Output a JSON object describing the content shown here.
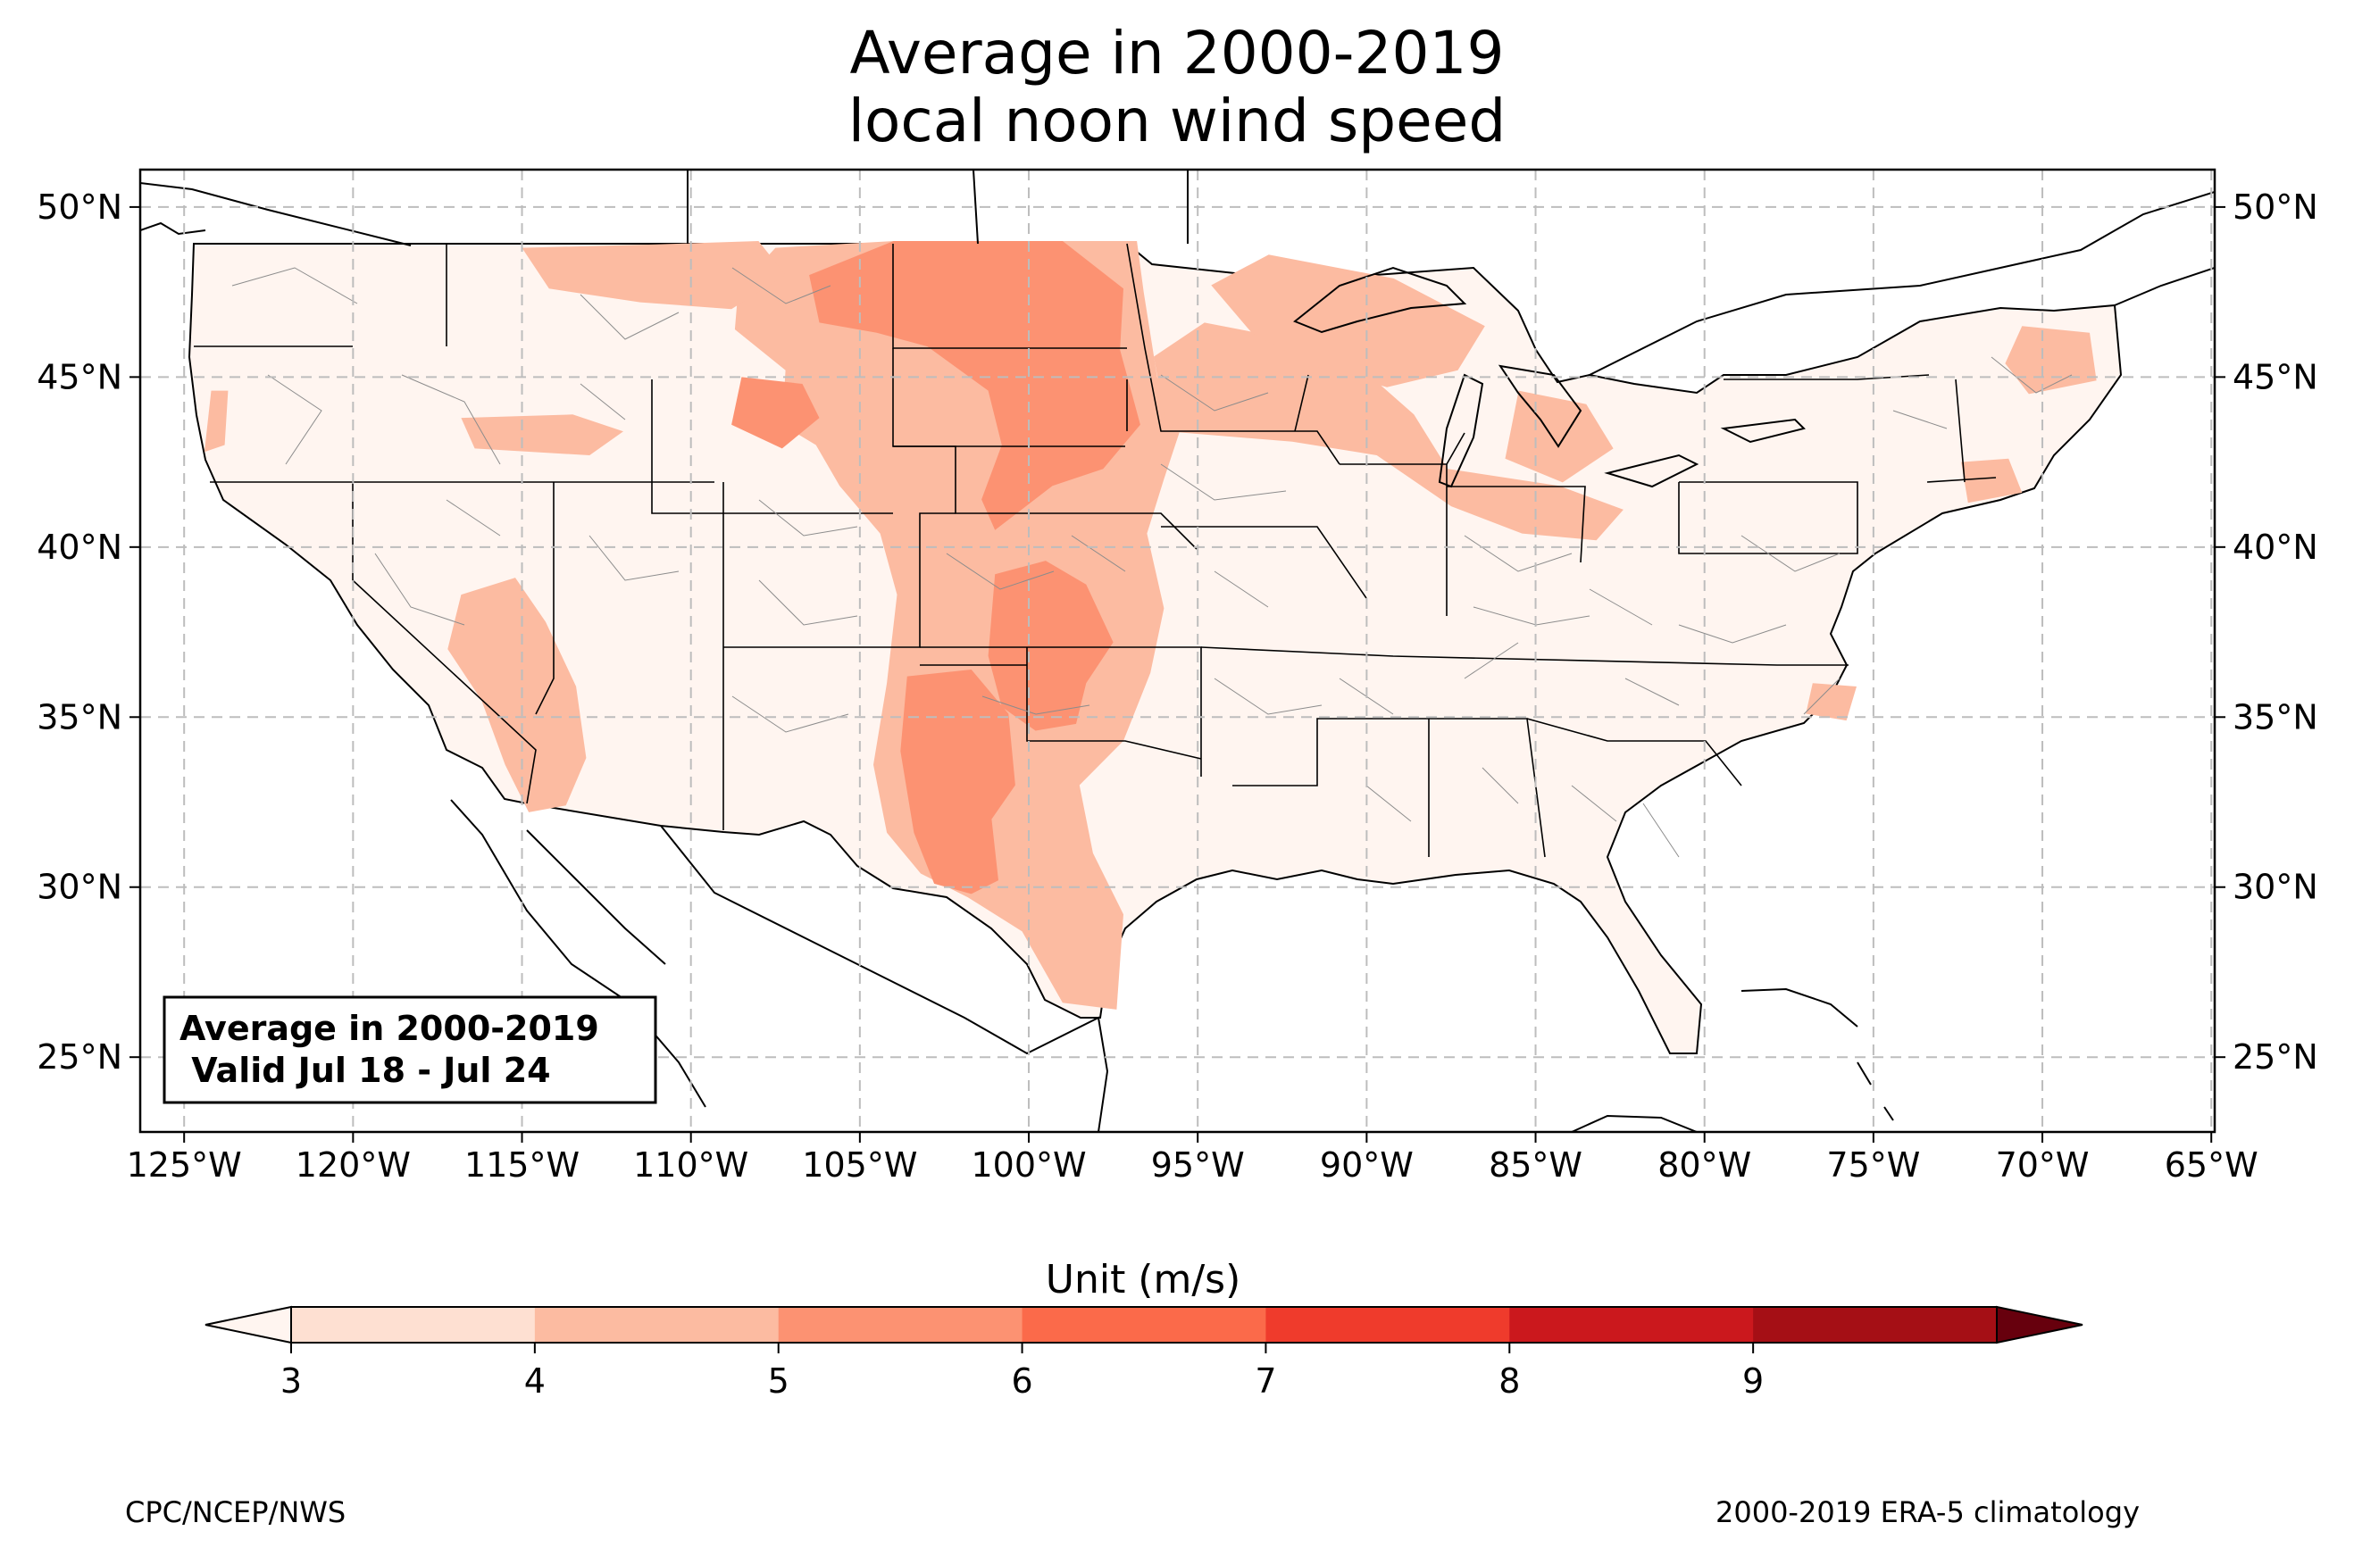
{
  "title_lines": [
    "Average in 2000-2019",
    "local noon wind speed"
  ],
  "info_box": {
    "line1": "Average in 2000-2019",
    "line2": " Valid Jul 18 - Jul 24"
  },
  "footer": {
    "left": "CPC/NCEP/NWS",
    "right": "2000-2019 ERA-5 climatology"
  },
  "colorbar": {
    "title": "Unit (m/s)",
    "ticks": [
      "3",
      "4",
      "5",
      "6",
      "7",
      "8",
      "9"
    ],
    "colors": [
      "#fee0d2",
      "#fcbba1",
      "#fc9272",
      "#fb6a4a",
      "#ef3b2c",
      "#cb181d",
      "#a50f15"
    ],
    "under_color": "#fff5f0",
    "over_color": "#67000d"
  },
  "chart_data": {
    "type": "heatmap",
    "projection": "plate-carree",
    "lon_range": [
      -126.3,
      -64.9
    ],
    "lat_range": [
      22.8,
      51.1
    ],
    "lon_ticks": [
      {
        "value": -125,
        "label": "125°W"
      },
      {
        "value": -120,
        "label": "120°W"
      },
      {
        "value": -115,
        "label": "115°W"
      },
      {
        "value": -110,
        "label": "110°W"
      },
      {
        "value": -105,
        "label": "105°W"
      },
      {
        "value": -100,
        "label": "100°W"
      },
      {
        "value": -95,
        "label": "95°W"
      },
      {
        "value": -90,
        "label": "90°W"
      },
      {
        "value": -85,
        "label": "85°W"
      },
      {
        "value": -80,
        "label": "80°W"
      },
      {
        "value": -75,
        "label": "75°W"
      },
      {
        "value": -70,
        "label": "70°W"
      },
      {
        "value": -65,
        "label": "65°W"
      }
    ],
    "lat_ticks": [
      {
        "value": 50,
        "label": "50°N"
      },
      {
        "value": 45,
        "label": "45°N"
      },
      {
        "value": 40,
        "label": "40°N"
      },
      {
        "value": 35,
        "label": "35°N"
      },
      {
        "value": 30,
        "label": "30°N"
      },
      {
        "value": 25,
        "label": "25°N"
      }
    ],
    "grid": true,
    "units": "m/s",
    "levels": [
      3,
      4,
      5,
      6,
      7,
      8,
      9
    ],
    "background_level": "3-4",
    "regions": [
      {
        "name": "northern-great-plains",
        "level": "5-6",
        "polygon": [
          [
            -106.5,
            48
          ],
          [
            -104,
            49
          ],
          [
            -99,
            49
          ],
          [
            -97.2,
            47.6
          ],
          [
            -97.3,
            45.8
          ],
          [
            -96.7,
            43.6
          ],
          [
            -97.8,
            42.3
          ],
          [
            -99.3,
            41.8
          ],
          [
            -101,
            40.5
          ],
          [
            -101.4,
            41.4
          ],
          [
            -100.8,
            43
          ],
          [
            -101.2,
            44.6
          ],
          [
            -103,
            45.9
          ],
          [
            -104.5,
            46.3
          ],
          [
            -106.2,
            46.6
          ]
        ]
      },
      {
        "name": "central-plains",
        "level": "5-6",
        "polygon": [
          [
            -101,
            39.2
          ],
          [
            -99.5,
            39.6
          ],
          [
            -98.3,
            38.9
          ],
          [
            -97.5,
            37.2
          ],
          [
            -98.3,
            36
          ],
          [
            -98.6,
            34.8
          ],
          [
            -99.8,
            34.6
          ],
          [
            -100.8,
            35.3
          ],
          [
            -101.2,
            36.8
          ]
        ]
      },
      {
        "name": "south-texas-plains",
        "level": "5-6",
        "polygon": [
          [
            -103.6,
            36.2
          ],
          [
            -101.7,
            36.4
          ],
          [
            -100.6,
            35.1
          ],
          [
            -100.4,
            33
          ],
          [
            -101.1,
            32
          ],
          [
            -100.9,
            30.2
          ],
          [
            -101.7,
            29.8
          ],
          [
            -102.8,
            30.1
          ],
          [
            -103.4,
            31.6
          ],
          [
            -103.8,
            34
          ]
        ]
      },
      {
        "name": "wyoming-basin",
        "level": "5-6",
        "polygon": [
          [
            -108.5,
            45
          ],
          [
            -106.7,
            44.8
          ],
          [
            -106.2,
            43.8
          ],
          [
            -107.3,
            42.9
          ],
          [
            -108.8,
            43.6
          ]
        ]
      },
      {
        "name": "high-plains-broad",
        "level": "4-5",
        "polygon": [
          [
            -107.5,
            48.8
          ],
          [
            -104,
            49
          ],
          [
            -96.8,
            49
          ],
          [
            -96.6,
            47.5
          ],
          [
            -96.2,
            45
          ],
          [
            -95.5,
            43.5
          ],
          [
            -96,
            42
          ],
          [
            -96.5,
            40.4
          ],
          [
            -96,
            38.2
          ],
          [
            -96.4,
            36.3
          ],
          [
            -97.2,
            34.3
          ],
          [
            -98.5,
            33
          ],
          [
            -98.1,
            31
          ],
          [
            -97.2,
            29.2
          ],
          [
            -97.4,
            26.4
          ],
          [
            -99,
            26.6
          ],
          [
            -100.2,
            28.7
          ],
          [
            -101.8,
            29.7
          ],
          [
            -103.2,
            30.4
          ],
          [
            -104.2,
            31.6
          ],
          [
            -104.6,
            33.6
          ],
          [
            -104.2,
            36
          ],
          [
            -103.9,
            38.6
          ],
          [
            -104.4,
            40.4
          ],
          [
            -105.6,
            41.8
          ],
          [
            -106.3,
            43
          ],
          [
            -107.3,
            43.6
          ],
          [
            -107.2,
            45.2
          ],
          [
            -108.7,
            46.4
          ],
          [
            -108.6,
            47.6
          ]
        ]
      },
      {
        "name": "montana-north",
        "level": "4-5",
        "polygon": [
          [
            -115,
            48.8
          ],
          [
            -111,
            48.9
          ],
          [
            -108,
            49
          ],
          [
            -107.2,
            48
          ],
          [
            -108.8,
            47
          ],
          [
            -111.5,
            47.2
          ],
          [
            -114.2,
            47.6
          ]
        ]
      },
      {
        "name": "southwest-desert",
        "level": "4-5",
        "polygon": [
          [
            -116.8,
            38.6
          ],
          [
            -115.2,
            39.1
          ],
          [
            -114.3,
            37.8
          ],
          [
            -113.4,
            35.9
          ],
          [
            -113.1,
            33.8
          ],
          [
            -113.7,
            32.4
          ],
          [
            -114.8,
            32.2
          ],
          [
            -115.5,
            33.6
          ],
          [
            -116.2,
            35.5
          ],
          [
            -117.2,
            37
          ]
        ]
      },
      {
        "name": "iowa-illinois-corridor",
        "level": "4-5",
        "polygon": [
          [
            -95.9,
            43.4
          ],
          [
            -92.2,
            43.1
          ],
          [
            -89.7,
            42.7
          ],
          [
            -87.5,
            41.2
          ],
          [
            -85.4,
            40.4
          ],
          [
            -83.2,
            40.2
          ],
          [
            -82.4,
            41.1
          ],
          [
            -84.3,
            41.8
          ],
          [
            -87.6,
            42.3
          ],
          [
            -88.6,
            43.9
          ],
          [
            -90.2,
            45.3
          ],
          [
            -92.7,
            46.2
          ],
          [
            -94.8,
            46.6
          ],
          [
            -96.3,
            45.6
          ]
        ]
      },
      {
        "name": "upper-midwest",
        "level": "4-5",
        "polygon": [
          [
            -92.9,
            48.6
          ],
          [
            -89.2,
            47.9
          ],
          [
            -86.5,
            46.5
          ],
          [
            -87.3,
            45.2
          ],
          [
            -89.4,
            44.7
          ],
          [
            -91.5,
            45.3
          ],
          [
            -93.4,
            46.3
          ],
          [
            -94.6,
            47.7
          ]
        ]
      },
      {
        "name": "southern-michigan",
        "level": "4-5",
        "polygon": [
          [
            -85.5,
            44.6
          ],
          [
            -83.5,
            44.2
          ],
          [
            -82.7,
            42.9
          ],
          [
            -84.2,
            41.9
          ],
          [
            -85.9,
            42.6
          ]
        ]
      },
      {
        "name": "northern-new-england",
        "level": "4-5",
        "polygon": [
          [
            -70.6,
            46.5
          ],
          [
            -68.6,
            46.3
          ],
          [
            -68.4,
            44.9
          ],
          [
            -70.4,
            44.5
          ],
          [
            -71.1,
            45.4
          ]
        ]
      },
      {
        "name": "new-england-coast",
        "level": "4-5",
        "polygon": [
          [
            -72.4,
            42.5
          ],
          [
            -71,
            42.6
          ],
          [
            -70.6,
            41.6
          ],
          [
            -72.2,
            41.3
          ]
        ]
      },
      {
        "name": "carolina-coast",
        "level": "4-5",
        "polygon": [
          [
            -76.8,
            36
          ],
          [
            -75.5,
            35.9
          ],
          [
            -75.8,
            34.9
          ],
          [
            -77,
            35.1
          ]
        ]
      },
      {
        "name": "west-coast-oregon",
        "level": "4-5",
        "polygon": [
          [
            -124.2,
            44.6
          ],
          [
            -123.7,
            44.6
          ],
          [
            -123.8,
            43
          ],
          [
            -124.4,
            42.8
          ]
        ]
      },
      {
        "name": "idaho-plain",
        "level": "4-5",
        "polygon": [
          [
            -116.8,
            43.8
          ],
          [
            -113.5,
            43.9
          ],
          [
            -112,
            43.4
          ],
          [
            -113,
            42.7
          ],
          [
            -116.4,
            42.9
          ]
        ]
      }
    ]
  }
}
